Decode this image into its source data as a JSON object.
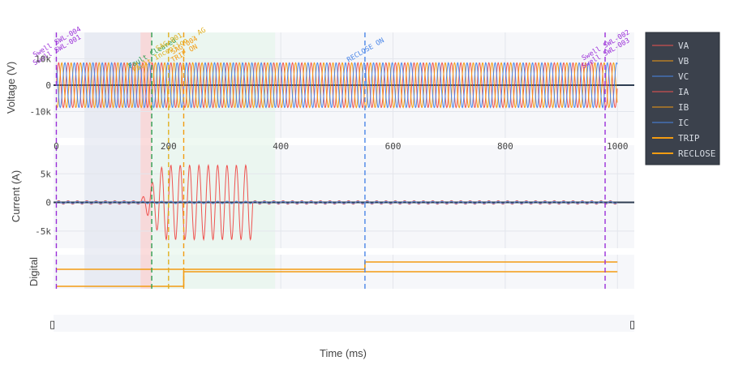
{
  "chart_data": {
    "type": "line",
    "xlabel": "Time (ms)",
    "xlim": [
      -5,
      1030
    ],
    "x_ticks": [
      0,
      200,
      400,
      600,
      800,
      1000
    ],
    "panels": [
      {
        "id": "voltage",
        "ylabel": "Voltage (V)",
        "ylim": [
          -20000,
          20000
        ],
        "y_ticks": [
          10000,
          0,
          -10000
        ],
        "y_tick_labels": [
          "10k",
          "0",
          "-10k"
        ]
      },
      {
        "id": "current",
        "ylabel": "Current (A)",
        "ylim": [
          -8000,
          10000
        ],
        "y_ticks": [
          5000,
          0,
          -5000
        ],
        "y_tick_labels": [
          "5k",
          "0",
          "-5k"
        ]
      },
      {
        "id": "digital",
        "ylabel": "Digital",
        "ylim": [
          -0.1,
          1.3
        ]
      }
    ],
    "series": [
      {
        "name": "VA",
        "panel": "voltage",
        "color": "#ef5350",
        "frequency_hz": 60,
        "amplitude": 8500,
        "phase_deg": 0
      },
      {
        "name": "VB",
        "panel": "voltage",
        "color": "#f39c12",
        "frequency_hz": 60,
        "amplitude": 8500,
        "phase_deg": -120
      },
      {
        "name": "VC",
        "panel": "voltage",
        "color": "#4a86e8",
        "frequency_hz": 60,
        "amplitude": 8500,
        "phase_deg": 120
      },
      {
        "name": "IA",
        "panel": "current",
        "color": "#ef5350",
        "frequency_hz": 60,
        "prefault_amplitude": 300,
        "fault_amplitude": 6500,
        "fault_window_ms": [
          150,
          350
        ]
      },
      {
        "name": "IB",
        "panel": "current",
        "color": "#f39c12",
        "frequency_hz": 60,
        "amplitude": 200
      },
      {
        "name": "IC",
        "panel": "current",
        "color": "#4a86e8",
        "frequency_hz": 60,
        "amplitude": 200
      },
      {
        "name": "TRIP",
        "panel": "digital",
        "color": "#f39c12",
        "steps": [
          [
            0,
            0
          ],
          [
            227,
            0
          ],
          [
            227,
            0.6
          ],
          [
            1000,
            0.6
          ]
        ]
      },
      {
        "name": "RECLOSE",
        "panel": "digital",
        "color": "#f39c12",
        "steps": [
          [
            0,
            0.7
          ],
          [
            550,
            0.7
          ],
          [
            550,
            1
          ],
          [
            1000,
            1
          ]
        ]
      }
    ],
    "shaded_regions": [
      {
        "x": [
          50,
          150
        ],
        "color": "#dfe3ee"
      },
      {
        "x": [
          150,
          170
        ],
        "color": "#f8c4c4"
      },
      {
        "x": [
          170,
          390
        ],
        "color": "#e4f5ea"
      }
    ],
    "events": [
      {
        "x": 0,
        "color": "#9b30d9",
        "labels": [
          "Swell SWL-001",
          "Swell SWL-004"
        ]
      },
      {
        "x": 170,
        "color": "#2e9e4f",
        "labels": [
          "Fault Cleared"
        ]
      },
      {
        "x": 200,
        "color": "#e0b020",
        "labels": [
          "Fault Inception - AG",
          "SAG-001"
        ]
      },
      {
        "x": 227,
        "color": "#f39c12",
        "labels": [
          "TRIP ON",
          "SAG-004"
        ]
      },
      {
        "x": 550,
        "color": "#4a86e8",
        "labels": [
          "RECLOSE ON"
        ]
      },
      {
        "x": 978,
        "color": "#9b30d9",
        "labels": [
          "Swell SWL-003",
          "Swell SWL-002"
        ]
      }
    ]
  },
  "legend": {
    "items": [
      {
        "label": "VA",
        "color": "#ef5350"
      },
      {
        "label": "VB",
        "color": "#f39c12"
      },
      {
        "label": "VC",
        "color": "#4a86e8"
      },
      {
        "label": "IA",
        "color": "#ef5350"
      },
      {
        "label": "IB",
        "color": "#f39c12"
      },
      {
        "label": "IC",
        "color": "#4a86e8"
      },
      {
        "label": "TRIP",
        "color": "#f39c12"
      },
      {
        "label": "RECLOSE",
        "color": "#f39c12"
      }
    ]
  },
  "range_slider": {
    "left_handle": "▯",
    "right_handle": "▯"
  }
}
